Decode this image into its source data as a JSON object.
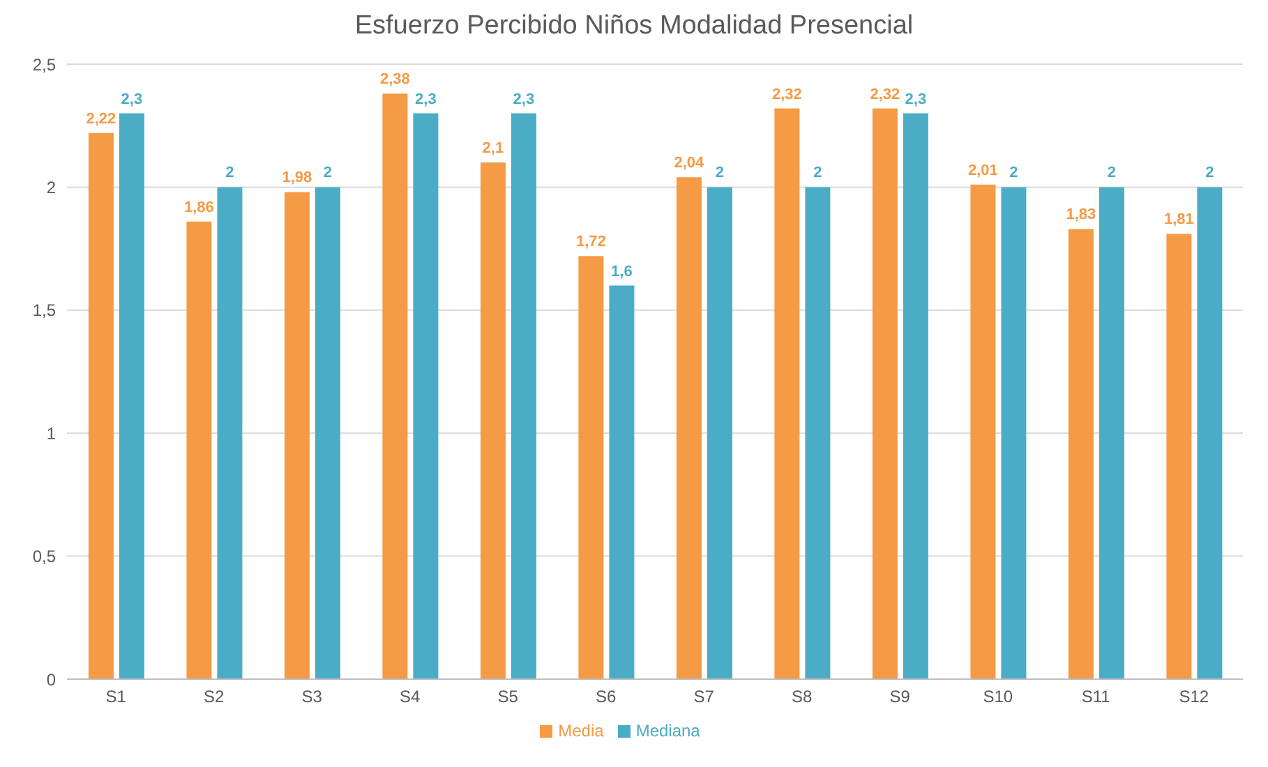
{
  "chart_data": {
    "type": "bar",
    "title": "Esfuerzo Percibido Niños Modalidad Presencial",
    "categories": [
      "S1",
      "S2",
      "S3",
      "S4",
      "S5",
      "S6",
      "S7",
      "S8",
      "S9",
      "S10",
      "S11",
      "S12"
    ],
    "series": [
      {
        "name": "Media",
        "color": "#f59a45",
        "values": [
          2.22,
          1.86,
          1.98,
          2.38,
          2.1,
          1.72,
          2.04,
          2.32,
          2.32,
          2.01,
          1.83,
          1.81
        ],
        "value_labels": [
          "2,22",
          "1,86",
          "1,98",
          "2,38",
          "2,1",
          "1,72",
          "2,04",
          "2,32",
          "2,32",
          "2,01",
          "1,83",
          "1,81"
        ]
      },
      {
        "name": "Mediana",
        "color": "#4bacc6",
        "values": [
          2.3,
          2,
          2,
          2.3,
          2.3,
          1.6,
          2,
          2,
          2.3,
          2,
          2,
          2
        ],
        "value_labels": [
          "2,3",
          "2",
          "2",
          "2,3",
          "2,3",
          "1,6",
          "2",
          "2",
          "2,3",
          "2",
          "2",
          "2"
        ]
      }
    ],
    "ylim": [
      0,
      2.5
    ],
    "yticks": [
      0,
      {
        "value": 0.5,
        "label": "0,5"
      },
      1,
      {
        "value": 1.5,
        "label": "1,5"
      },
      2,
      {
        "value": 2.5,
        "label": "2,5"
      }
    ],
    "grid": "y",
    "legend": "bottom"
  }
}
